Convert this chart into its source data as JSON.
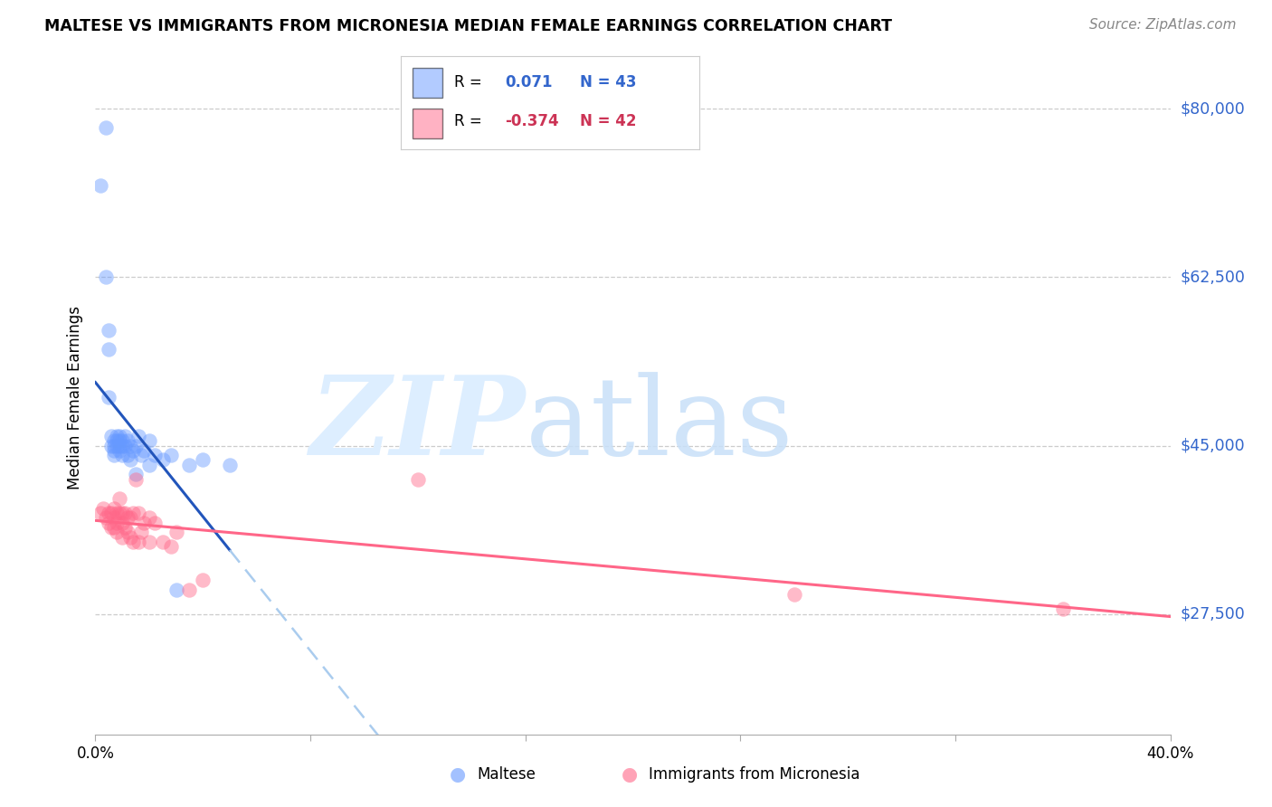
{
  "title": "MALTESE VS IMMIGRANTS FROM MICRONESIA MEDIAN FEMALE EARNINGS CORRELATION CHART",
  "source": "Source: ZipAtlas.com",
  "ylabel": "Median Female Earnings",
  "ytick_labels": [
    "$27,500",
    "$45,000",
    "$62,500",
    "$80,000"
  ],
  "ytick_values": [
    27500,
    45000,
    62500,
    80000
  ],
  "ymin": 15000,
  "ymax": 85000,
  "xmin": 0.0,
  "xmax": 0.4,
  "r_maltese": 0.071,
  "n_maltese": 43,
  "r_micronesia": -0.374,
  "n_micronesia": 42,
  "color_maltese": "#6699ff",
  "color_micronesia": "#ff6688",
  "legend_label_maltese": "Maltese",
  "legend_label_micronesia": "Immigrants from Micronesia",
  "maltese_x": [
    0.002,
    0.004,
    0.004,
    0.005,
    0.005,
    0.005,
    0.006,
    0.006,
    0.007,
    0.007,
    0.007,
    0.007,
    0.008,
    0.008,
    0.008,
    0.009,
    0.009,
    0.009,
    0.009,
    0.01,
    0.01,
    0.01,
    0.011,
    0.011,
    0.012,
    0.012,
    0.013,
    0.013,
    0.014,
    0.015,
    0.015,
    0.016,
    0.017,
    0.018,
    0.02,
    0.02,
    0.022,
    0.025,
    0.028,
    0.03,
    0.035,
    0.04,
    0.05
  ],
  "maltese_y": [
    72000,
    78000,
    62500,
    57000,
    55000,
    50000,
    46000,
    45000,
    45500,
    45000,
    44500,
    44000,
    46000,
    45500,
    45000,
    46000,
    45500,
    45000,
    44500,
    45500,
    45000,
    44000,
    46000,
    45000,
    45500,
    44000,
    45000,
    43500,
    44500,
    45000,
    42000,
    46000,
    44000,
    44500,
    45500,
    43000,
    44000,
    43500,
    44000,
    30000,
    43000,
    43500,
    43000
  ],
  "micronesia_x": [
    0.002,
    0.003,
    0.004,
    0.005,
    0.005,
    0.006,
    0.006,
    0.007,
    0.007,
    0.007,
    0.008,
    0.008,
    0.008,
    0.009,
    0.009,
    0.01,
    0.01,
    0.01,
    0.011,
    0.011,
    0.012,
    0.012,
    0.013,
    0.013,
    0.014,
    0.014,
    0.015,
    0.016,
    0.016,
    0.017,
    0.018,
    0.02,
    0.02,
    0.022,
    0.025,
    0.028,
    0.03,
    0.035,
    0.04,
    0.12,
    0.26,
    0.36
  ],
  "micronesia_y": [
    38000,
    38500,
    37500,
    38000,
    37000,
    38000,
    36500,
    38500,
    37500,
    36500,
    38000,
    37000,
    36000,
    39500,
    38000,
    38000,
    37000,
    35500,
    38000,
    36500,
    37500,
    36000,
    37500,
    35500,
    38000,
    35000,
    41500,
    38000,
    35000,
    36000,
    37000,
    37500,
    35000,
    37000,
    35000,
    34500,
    36000,
    30000,
    31000,
    41500,
    29500,
    28000
  ],
  "line_blue_x0": 0.0,
  "line_blue_x_solid_end": 0.05,
  "line_blue_x1": 0.4,
  "line_pink_x0": 0.0,
  "line_pink_x1": 0.4
}
